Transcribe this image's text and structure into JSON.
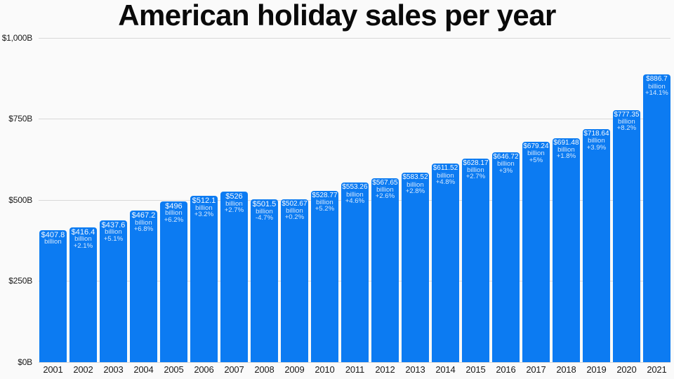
{
  "chart_data": {
    "type": "bar",
    "title": "American holiday sales per year",
    "xlabel": "",
    "ylabel": "",
    "ylim": [
      0,
      1000
    ],
    "grid": true,
    "legend_position": "none",
    "categories": [
      "2001",
      "2002",
      "2003",
      "2004",
      "2005",
      "2006",
      "2007",
      "2008",
      "2009",
      "2010",
      "2011",
      "2012",
      "2013",
      "2014",
      "2015",
      "2016",
      "2017",
      "2018",
      "2019",
      "2020",
      "2021"
    ],
    "values": [
      407.8,
      416.4,
      437.6,
      467.2,
      496,
      512.1,
      526,
      501.5,
      502.67,
      528.77,
      553.26,
      567.65,
      583.52,
      611.52,
      628.17,
      646.72,
      679.24,
      691.48,
      718.64,
      777.35,
      886.7
    ],
    "bar_labels": [
      {
        "value": "$407.8",
        "unit": "billion",
        "change": ""
      },
      {
        "value": "$416.4",
        "unit": "billion",
        "change": "+2.1%"
      },
      {
        "value": "$437.6",
        "unit": "billion",
        "change": "+5.1%"
      },
      {
        "value": "$467.2",
        "unit": "billion",
        "change": "+6.8%"
      },
      {
        "value": "$496",
        "unit": "billion",
        "change": "+6.2%"
      },
      {
        "value": "$512.1",
        "unit": "billion",
        "change": "+3.2%"
      },
      {
        "value": "$526",
        "unit": "billion",
        "change": "+2.7%"
      },
      {
        "value": "$501.5",
        "unit": "billion",
        "change": "-4.7%"
      },
      {
        "value": "$502.67",
        "unit": "billion",
        "change": "+0.2%"
      },
      {
        "value": "$528.77",
        "unit": "billion",
        "change": "+5.2%"
      },
      {
        "value": "$553.26",
        "unit": "billion",
        "change": "+4.6%"
      },
      {
        "value": "$567.65",
        "unit": "billion",
        "change": "+2.6%"
      },
      {
        "value": "$583.52",
        "unit": "billion",
        "change": "+2.8%"
      },
      {
        "value": "$611.52",
        "unit": "billion",
        "change": "+4.8%"
      },
      {
        "value": "$628.17",
        "unit": "billion",
        "change": "+2.7%"
      },
      {
        "value": "$646.72",
        "unit": "billion",
        "change": "+3%"
      },
      {
        "value": "$679.24",
        "unit": "billion",
        "change": "+5%"
      },
      {
        "value": "$691.48",
        "unit": "billion",
        "change": "+1.8%"
      },
      {
        "value": "$718.64",
        "unit": "billion",
        "change": "+3.9%"
      },
      {
        "value": "$777.35",
        "unit": "billion",
        "change": "+8.2%"
      },
      {
        "value": "$886.7",
        "unit": "billion",
        "change": "+14.1%"
      }
    ],
    "yticks": [
      {
        "value": 0,
        "label": "$0B"
      },
      {
        "value": 250,
        "label": "$250B"
      },
      {
        "value": 500,
        "label": "$500B"
      },
      {
        "value": 750,
        "label": "$750B"
      },
      {
        "value": 1000,
        "label": "$1,000B"
      }
    ],
    "colors": {
      "bar": "#0c7bf2",
      "background": "#fafafa",
      "gridline": "#d8d8d8",
      "title_text": "#0a0a0a",
      "axis_text": "#1a1a1a",
      "bar_label_text": "#ffffff"
    }
  }
}
